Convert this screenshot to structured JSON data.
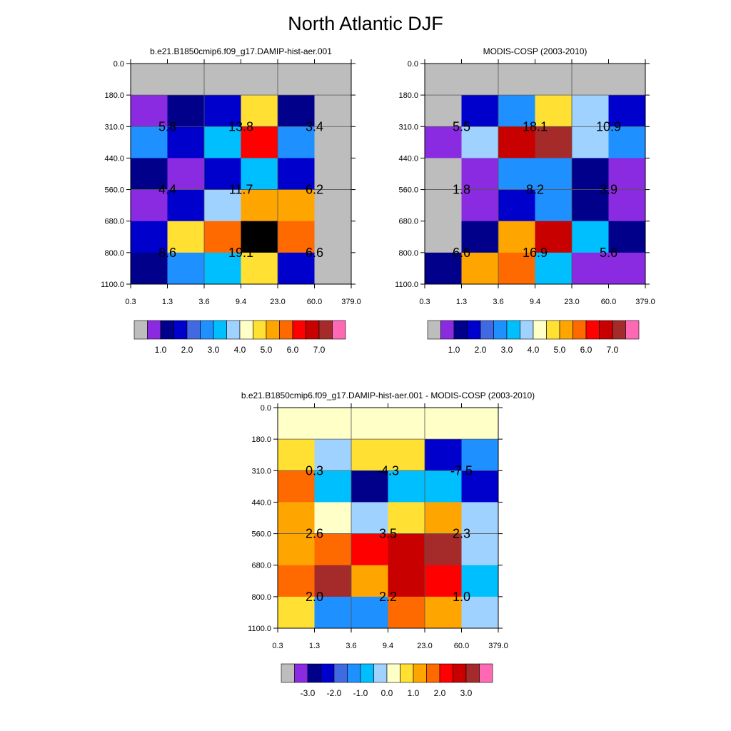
{
  "title": "North Atlantic DJF",
  "x_tick_labels": [
    "0.3",
    "1.3",
    "3.6",
    "9.4",
    "23.0",
    "60.0",
    "379.0"
  ],
  "y_tick_labels": [
    "0.0",
    "180.0",
    "310.0",
    "440.0",
    "560.0",
    "680.0",
    "800.0",
    "1100.0"
  ],
  "chart_data": [
    {
      "type": "heatmap",
      "title": "b.e21.B1850cmip6.f09_g17.DAMIP-hist-aer.001",
      "rows_top_to_bottom": [
        [
          0,
          0,
          0,
          0,
          0,
          0
        ],
        [
          1,
          2,
          3,
          9,
          2,
          0
        ],
        [
          5,
          3,
          6,
          12,
          5,
          0
        ],
        [
          2,
          1,
          3,
          6,
          3,
          0
        ],
        [
          1,
          3,
          7,
          10,
          10,
          0
        ],
        [
          3,
          9,
          11,
          17,
          11,
          0
        ],
        [
          2,
          5,
          6,
          9,
          3,
          0
        ]
      ],
      "block_labels": [
        {
          "text": "5.8",
          "col": 0,
          "row": 1
        },
        {
          "text": "13.8",
          "col": 1,
          "row": 1
        },
        {
          "text": "3.4",
          "col": 2,
          "row": 1
        },
        {
          "text": "4.4",
          "col": 0,
          "row": 2
        },
        {
          "text": "11.7",
          "col": 1,
          "row": 2
        },
        {
          "text": "6.2",
          "col": 2,
          "row": 2
        },
        {
          "text": "8.6",
          "col": 0,
          "row": 3
        },
        {
          "text": "19.1",
          "col": 1,
          "row": 3
        },
        {
          "text": "6.6",
          "col": 2,
          "row": 3
        }
      ],
      "colorbar_labels": [
        "1.0",
        "2.0",
        "3.0",
        "4.0",
        "5.0",
        "6.0",
        "7.0"
      ]
    },
    {
      "type": "heatmap",
      "title": "MODIS-COSP (2003-2010)",
      "rows_top_to_bottom": [
        [
          0,
          0,
          0,
          0,
          0,
          0
        ],
        [
          0,
          3,
          5,
          9,
          7,
          3
        ],
        [
          1,
          7,
          13,
          14,
          7,
          5
        ],
        [
          0,
          1,
          5,
          5,
          2,
          1
        ],
        [
          0,
          1,
          3,
          5,
          2,
          1
        ],
        [
          0,
          2,
          10,
          13,
          6,
          2
        ],
        [
          2,
          10,
          11,
          6,
          1,
          1
        ]
      ],
      "block_labels": [
        {
          "text": "5.5",
          "col": 0,
          "row": 1
        },
        {
          "text": "18.1",
          "col": 1,
          "row": 1
        },
        {
          "text": "10.9",
          "col": 2,
          "row": 1
        },
        {
          "text": "1.8",
          "col": 0,
          "row": 2
        },
        {
          "text": "8.2",
          "col": 1,
          "row": 2
        },
        {
          "text": "3.9",
          "col": 2,
          "row": 2
        },
        {
          "text": "6.6",
          "col": 0,
          "row": 3
        },
        {
          "text": "16.9",
          "col": 1,
          "row": 3
        },
        {
          "text": "5.6",
          "col": 2,
          "row": 3
        }
      ],
      "colorbar_labels": [
        "1.0",
        "2.0",
        "3.0",
        "4.0",
        "5.0",
        "6.0",
        "7.0"
      ]
    },
    {
      "type": "heatmap",
      "title": "b.e21.B1850cmip6.f09_g17.DAMIP-hist-aer.001 - MODIS-COSP (2003-2010)",
      "rows_top_to_bottom": [
        [
          8,
          8,
          8,
          8,
          8,
          8
        ],
        [
          9,
          7,
          9,
          9,
          3,
          5
        ],
        [
          11,
          6,
          2,
          6,
          6,
          3
        ],
        [
          10,
          8,
          7,
          9,
          10,
          7
        ],
        [
          10,
          11,
          12,
          13,
          14,
          7
        ],
        [
          11,
          14,
          10,
          13,
          12,
          6
        ],
        [
          9,
          5,
          5,
          11,
          10,
          7
        ]
      ],
      "block_labels": [
        {
          "text": "0.3",
          "col": 0,
          "row": 1
        },
        {
          "text": "-4.3",
          "col": 1,
          "row": 1
        },
        {
          "text": "-7.5",
          "col": 2,
          "row": 1
        },
        {
          "text": "2.6",
          "col": 0,
          "row": 2
        },
        {
          "text": "3.5",
          "col": 1,
          "row": 2
        },
        {
          "text": "2.3",
          "col": 2,
          "row": 2
        },
        {
          "text": "2.0",
          "col": 0,
          "row": 3
        },
        {
          "text": "2.2",
          "col": 1,
          "row": 3
        },
        {
          "text": "1.0",
          "col": 2,
          "row": 3
        }
      ],
      "colorbar_labels": [
        "-3.0",
        "-2.0",
        "-1.0",
        "0.0",
        "1.0",
        "2.0",
        "3.0"
      ]
    }
  ],
  "palette": [
    "#bdbdbd",
    "#8a2be2",
    "#00008b",
    "#0000cd",
    "#4169e1",
    "#1e90ff",
    "#00bfff",
    "#a0d2ff",
    "#ffffc8",
    "#ffe033",
    "#ffa500",
    "#ff6a00",
    "#ff0000",
    "#c80000",
    "#a52a2a",
    "#ff69b4"
  ]
}
